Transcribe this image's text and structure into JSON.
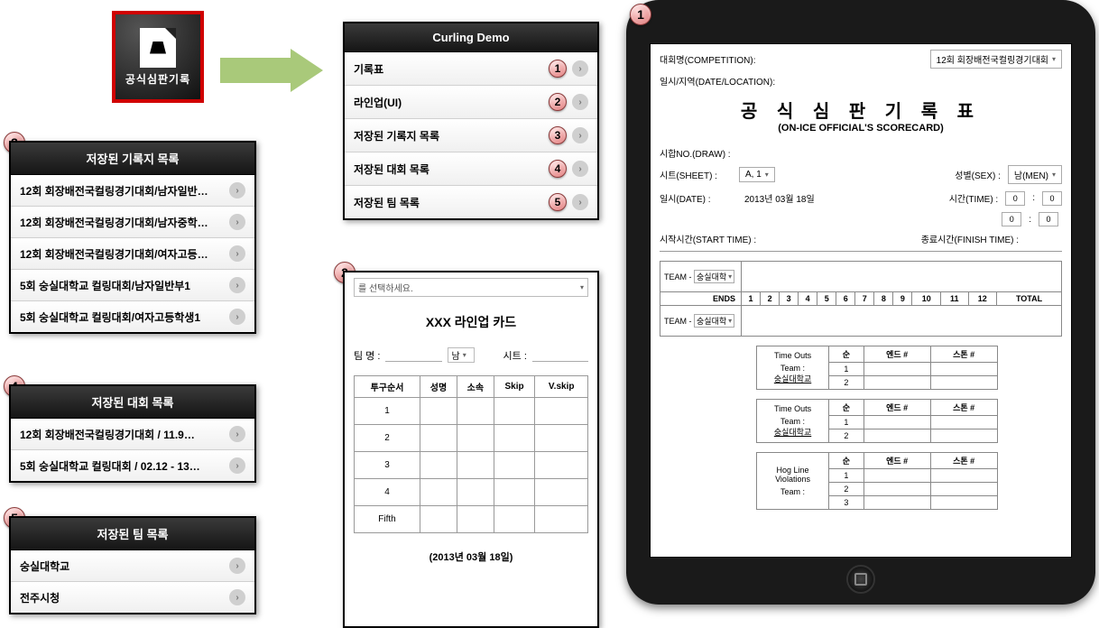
{
  "appIcon": {
    "label": "공식심판기록"
  },
  "mainMenu": {
    "title": "Curling Demo",
    "items": [
      {
        "label": "기록표",
        "num": "1"
      },
      {
        "label": "라인업(UI)",
        "num": "2"
      },
      {
        "label": "저장된 기록지 목록",
        "num": "3"
      },
      {
        "label": "저장된 대회 목록",
        "num": "4"
      },
      {
        "label": "저장된 팀 목록",
        "num": "5"
      }
    ]
  },
  "panel3": {
    "title": "저장된 기록지 목록",
    "items": [
      "12회 회장배전국컬링경기대회/남자일반…",
      "12회 회장배전국컬링경기대회/남자중학…",
      "12회 회장배전국컬링경기대회/여자고등…",
      "5회 숭실대학교 컬링대회/남자일반부1",
      "5회 숭실대학교 컬링대회/여자고등학생1"
    ]
  },
  "panel4": {
    "title": "저장된 대회 목록",
    "items": [
      "12회 회장배전국컬링경기대회   /   11.9…",
      "5회 숭실대학교 컬링대회   /   02.12 - 13…"
    ]
  },
  "panel5": {
    "title": "저장된 팀 목록",
    "items": [
      "숭실대학교",
      "전주시청"
    ]
  },
  "lineup": {
    "selectPrompt": "를 선택하세요.",
    "title": "XXX 라인업 카드",
    "teamLabel": "팀 명 :",
    "genderValue": "남",
    "sheetLabel": "시트 :",
    "columns": [
      "투구순서",
      "성명",
      "소속",
      "Skip",
      "V.skip"
    ],
    "rows": [
      "1",
      "2",
      "3",
      "4",
      "Fifth"
    ],
    "dateFoot": "(2013년 03월 18일)"
  },
  "scorecard": {
    "compLabel": "대회명(COMPETITION):",
    "compValue": "12회 회장배전국컬링경기대회",
    "dateLocLabel": "일시/지역(DATE/LOCATION):",
    "titleKo": "공 식 심 판 기 록 표",
    "titleEn": "(ON-ICE OFFICIAL'S SCORECARD)",
    "drawLabel": "시합NO.(DRAW) :",
    "sheetLabel": "시트(SHEET) :",
    "sheetValue": "A, 1",
    "sexLabel": "성별(SEX) :",
    "sexValue": "남(MEN)",
    "dateLabel": "일시(DATE) :",
    "dateValue": "2013년 03월 18일",
    "timeLabel": "시간(TIME) :",
    "startLabel": "시작시간(START TIME) :",
    "finishLabel": "종료시간(FINISH TIME) :",
    "teamPrefix": "TEAM -",
    "teamValue": "숭실대학",
    "endsLabel": "ENDS",
    "ends": [
      "1",
      "2",
      "3",
      "4",
      "5",
      "6",
      "7",
      "8",
      "9",
      "10",
      "11",
      "12"
    ],
    "totalLabel": "TOTAL",
    "timeOuts": {
      "label": "Time Outs",
      "teamLabel": "Team :",
      "teamValue": "숭실대학교",
      "cols": [
        "순",
        "엔드 #",
        "스톤 #"
      ],
      "rows": [
        "1",
        "2"
      ]
    },
    "hog": {
      "label": "Hog Line Violations",
      "teamLabel": "Team :",
      "cols": [
        "순",
        "엔드 #",
        "스톤 #"
      ],
      "rows": [
        "1",
        "2",
        "3"
      ]
    },
    "zero": "0"
  }
}
